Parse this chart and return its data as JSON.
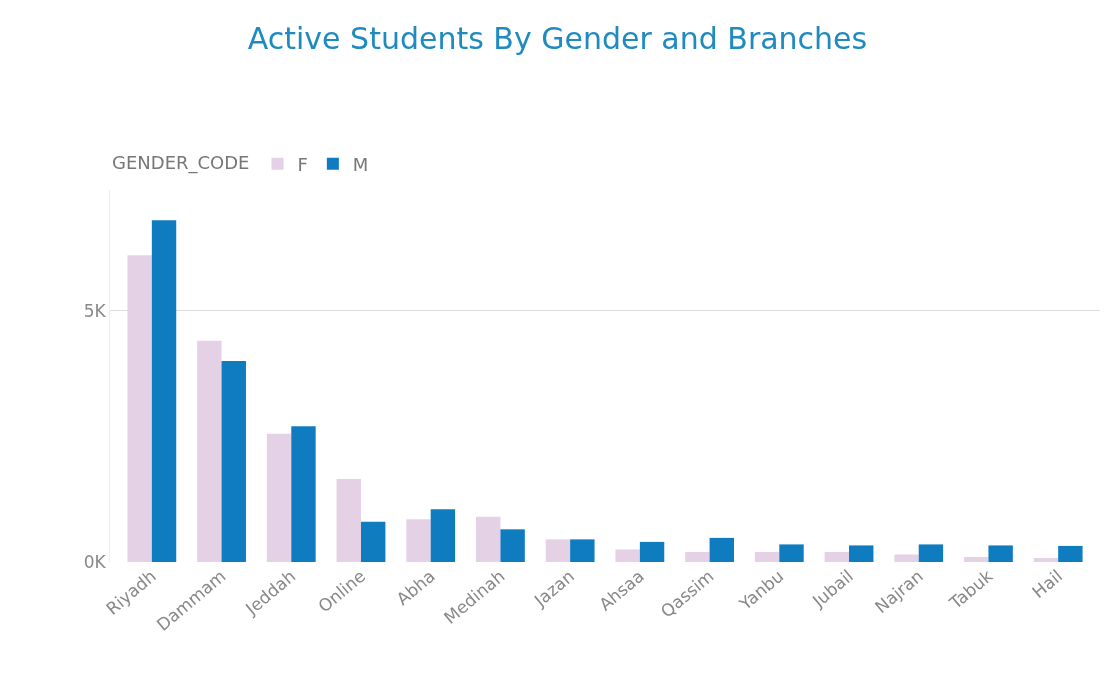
{
  "chart_data": {
    "type": "bar",
    "title": "Active Students By Gender and Branches",
    "legend_title": "GENDER_CODE",
    "categories": [
      "Riyadh",
      "Dammam",
      "Jeddah",
      "Online",
      "Abha",
      "Medinah",
      "Jazan",
      "Ahsaa",
      "Qassim",
      "Yanbu",
      "Jubail",
      "Najran",
      "Tabuk",
      "Hail"
    ],
    "series": [
      {
        "name": "F",
        "color": "#e5d1e6",
        "values": [
          6100,
          4400,
          2550,
          1650,
          850,
          900,
          450,
          250,
          200,
          200,
          200,
          150,
          100,
          80
        ]
      },
      {
        "name": "M",
        "color": "#0f7cbf",
        "values": [
          6800,
          4000,
          2700,
          800,
          1050,
          650,
          450,
          400,
          480,
          350,
          330,
          350,
          330,
          320
        ]
      }
    ],
    "ylim": [
      0,
      7400
    ],
    "yticks": [
      {
        "value": 0,
        "label": "0K"
      },
      {
        "value": 5000,
        "label": "5K"
      }
    ],
    "grid": "y",
    "legend": "top left"
  }
}
